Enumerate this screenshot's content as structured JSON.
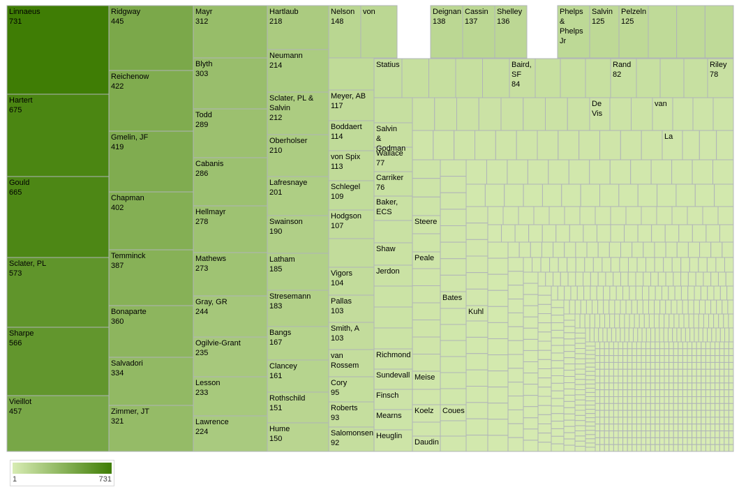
{
  "chart_data": {
    "type": "treemap",
    "size_and_color": "count",
    "color_scale": {
      "min": 1,
      "max": 731,
      "low_color": "#d8ecb4",
      "high_color": "#3f7d05"
    },
    "legend": {
      "min_label": "1",
      "max_label": "731",
      "position": "bottom-left"
    },
    "items": [
      {
        "name": "Linnaeus",
        "value": 731
      },
      {
        "name": "Hartert",
        "value": 675
      },
      {
        "name": "Gould",
        "value": 665
      },
      {
        "name": "Sclater, PL",
        "value": 573
      },
      {
        "name": "Sharpe",
        "value": 566
      },
      {
        "name": "Vieillot",
        "value": 457
      },
      {
        "name": "Ridgway",
        "value": 445
      },
      {
        "name": "Reichenow",
        "value": 422
      },
      {
        "name": "Gmelin, JF",
        "value": 419
      },
      {
        "name": "Chapman",
        "value": 402
      },
      {
        "name": "Temminck",
        "value": 387
      },
      {
        "name": "Bonaparte",
        "value": 360
      },
      {
        "name": "Salvadori",
        "value": 334
      },
      {
        "name": "Zimmer, JT",
        "value": 321
      },
      {
        "name": "Mayr",
        "value": 312
      },
      {
        "name": "Blyth",
        "value": 303
      },
      {
        "name": "Todd",
        "value": 289
      },
      {
        "name": "Cabanis",
        "value": 286
      },
      {
        "name": "Hellmayr",
        "value": 278
      },
      {
        "name": "Mathews",
        "value": 273
      },
      {
        "name": "Gray, GR",
        "value": 244
      },
      {
        "name": "Ogilvie-Grant",
        "value": 235
      },
      {
        "name": "Lesson",
        "value": 233
      },
      {
        "name": "Lawrence",
        "value": 224
      },
      {
        "name": "Hartlaub",
        "value": 218
      },
      {
        "name": "Neumann",
        "value": 214
      },
      {
        "name": "Sclater, PL & Salvin",
        "value": 212
      },
      {
        "name": "Oberholser",
        "value": 210
      },
      {
        "name": "Lafresnaye",
        "value": 201
      },
      {
        "name": "Swainson",
        "value": 190
      },
      {
        "name": "Latham",
        "value": 185
      },
      {
        "name": "Stresemann",
        "value": 183
      },
      {
        "name": "Bangs",
        "value": 167
      },
      {
        "name": "Clancey",
        "value": 161
      },
      {
        "name": "Rothschild",
        "value": 151
      },
      {
        "name": "Hume",
        "value": 150
      },
      {
        "name": "Nelson",
        "value": 148
      },
      {
        "name": "Deignan",
        "value": 138
      },
      {
        "name": "Cassin",
        "value": 137
      },
      {
        "name": "Shelley",
        "value": 136
      },
      {
        "name": "Salvin",
        "value": 125
      },
      {
        "name": "Pelzeln",
        "value": 125
      },
      {
        "name": "Meyer, AB",
        "value": 117
      },
      {
        "name": "Boddaert",
        "value": 114
      },
      {
        "name": "von Spix",
        "value": 113
      },
      {
        "name": "Schlegel",
        "value": 109
      },
      {
        "name": "Hodgson",
        "value": 107
      },
      {
        "name": "Vigors",
        "value": 104
      },
      {
        "name": "Pallas",
        "value": 103
      },
      {
        "name": "Smith, A",
        "value": 103
      },
      {
        "name": "Cory",
        "value": 95
      },
      {
        "name": "Roberts",
        "value": 93
      },
      {
        "name": "Salomonsen",
        "value": 92
      },
      {
        "name": "Baird, SF",
        "value": 84
      },
      {
        "name": "Rand",
        "value": 82
      },
      {
        "name": "Riley",
        "value": 78
      },
      {
        "name": "Wallace",
        "value": 77
      },
      {
        "name": "Carriker",
        "value": 76
      }
    ],
    "unlabeled_values_shown": [
      {
        "name": "von"
      },
      {
        "name": "Phelps & Phelps Jr"
      },
      {
        "name": "van Rossem"
      },
      {
        "name": "Statius"
      },
      {
        "name": "Salvin & Godman"
      },
      {
        "name": "Baker, ECS"
      },
      {
        "name": "Shaw"
      },
      {
        "name": "Jerdon"
      },
      {
        "name": "Richmond"
      },
      {
        "name": "Sundevall"
      },
      {
        "name": "Finsch"
      },
      {
        "name": "Mearns"
      },
      {
        "name": "Heuglin"
      },
      {
        "name": "Steere"
      },
      {
        "name": "Peale"
      },
      {
        "name": "Meise"
      },
      {
        "name": "Koelz"
      },
      {
        "name": "Daudin"
      },
      {
        "name": "Bates"
      },
      {
        "name": "Coues"
      },
      {
        "name": "Kuhl"
      },
      {
        "name": "De Vis"
      },
      {
        "name": "van"
      },
      {
        "name": "La"
      }
    ]
  }
}
